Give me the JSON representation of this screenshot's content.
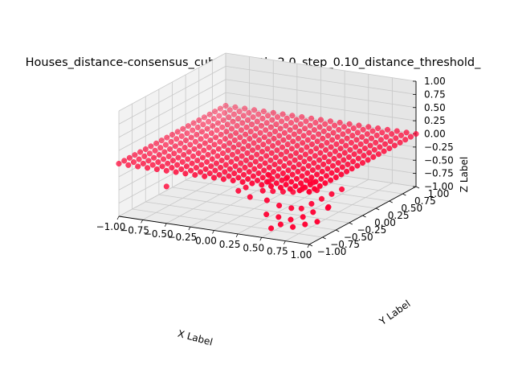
{
  "chart_data": {
    "type": "scatter",
    "title": "Houses_distance-consensus_cubus_length_2.0_step_0.10_distance_threshold_",
    "xlabel": "X Label",
    "ylabel": "Y Label",
    "zlabel": "Z Label",
    "xlim": [
      -1.0,
      1.0
    ],
    "ylim": [
      -1.0,
      1.0
    ],
    "zlim": [
      -1.0,
      1.0
    ],
    "x_ticks": [
      "−1.00",
      "−0.75",
      "−0.50",
      "−0.25",
      "0.00",
      "0.25",
      "0.50",
      "0.75",
      "1.00"
    ],
    "y_ticks": [
      "−1.00",
      "−0.75",
      "−0.50",
      "−0.25",
      "0.00",
      "0.25",
      "0.50",
      "0.75",
      "1.00"
    ],
    "z_ticks": [
      "−1.00",
      "−0.75",
      "−0.50",
      "−0.25",
      "0.00",
      "0.25",
      "0.50",
      "0.75",
      "1.00"
    ],
    "grid": true,
    "point_color": "#ff0033",
    "grid_points": {
      "x_start": -1.0,
      "x_end": 1.0,
      "y_start": -1.0,
      "y_end": 1.0,
      "step": 0.1,
      "z": 0.0
    },
    "extra_points": [
      {
        "x": -0.5,
        "y": -1.0,
        "z": -0.3
      },
      {
        "x": 0.2,
        "y": -0.9,
        "z": -0.25
      },
      {
        "x": 0.4,
        "y": -0.8,
        "z": -0.25
      },
      {
        "x": 0.45,
        "y": -0.7,
        "z": -0.3
      },
      {
        "x": 0.5,
        "y": -0.6,
        "z": -0.35
      },
      {
        "x": 0.55,
        "y": -0.5,
        "z": -0.4
      },
      {
        "x": 0.6,
        "y": -0.4,
        "z": -0.35
      },
      {
        "x": 0.65,
        "y": -0.3,
        "z": -0.3
      },
      {
        "x": 0.5,
        "y": -0.9,
        "z": -0.35
      },
      {
        "x": 0.6,
        "y": -0.85,
        "z": -0.45
      },
      {
        "x": 0.7,
        "y": -0.8,
        "z": -0.5
      },
      {
        "x": 0.75,
        "y": -0.7,
        "z": -0.55
      },
      {
        "x": 0.8,
        "y": -0.6,
        "z": -0.5
      },
      {
        "x": 0.85,
        "y": -0.5,
        "z": -0.45
      },
      {
        "x": 0.9,
        "y": -0.4,
        "z": -0.4
      },
      {
        "x": 0.95,
        "y": -0.3,
        "z": -0.35
      },
      {
        "x": 0.55,
        "y": -1.0,
        "z": -0.55
      },
      {
        "x": 0.65,
        "y": -0.95,
        "z": -0.6
      },
      {
        "x": 0.75,
        "y": -0.9,
        "z": -0.65
      },
      {
        "x": 0.85,
        "y": -0.85,
        "z": -0.6
      },
      {
        "x": 0.9,
        "y": -0.75,
        "z": -0.55
      },
      {
        "x": 1.0,
        "y": -0.65,
        "z": -0.5
      },
      {
        "x": 0.6,
        "y": -1.0,
        "z": -0.8
      },
      {
        "x": 0.7,
        "y": -1.0,
        "z": -0.7
      },
      {
        "x": 0.8,
        "y": -0.95,
        "z": -0.75
      },
      {
        "x": 0.9,
        "y": -0.9,
        "z": -0.7
      },
      {
        "x": 1.0,
        "y": -0.85,
        "z": -0.65
      },
      {
        "x": 0.35,
        "y": -0.6,
        "z": -0.2
      },
      {
        "x": 0.3,
        "y": -0.5,
        "z": -0.15
      },
      {
        "x": 0.45,
        "y": -0.45,
        "z": -0.2
      },
      {
        "x": 0.7,
        "y": -0.6,
        "z": -0.25
      },
      {
        "x": 0.8,
        "y": -0.5,
        "z": -0.3
      },
      {
        "x": 0.25,
        "y": -0.85,
        "z": -0.2
      },
      {
        "x": 0.35,
        "y": -0.95,
        "z": -0.3
      },
      {
        "x": 0.7,
        "y": -0.45,
        "z": -0.2
      },
      {
        "x": 0.95,
        "y": -0.55,
        "z": -0.55
      }
    ]
  }
}
